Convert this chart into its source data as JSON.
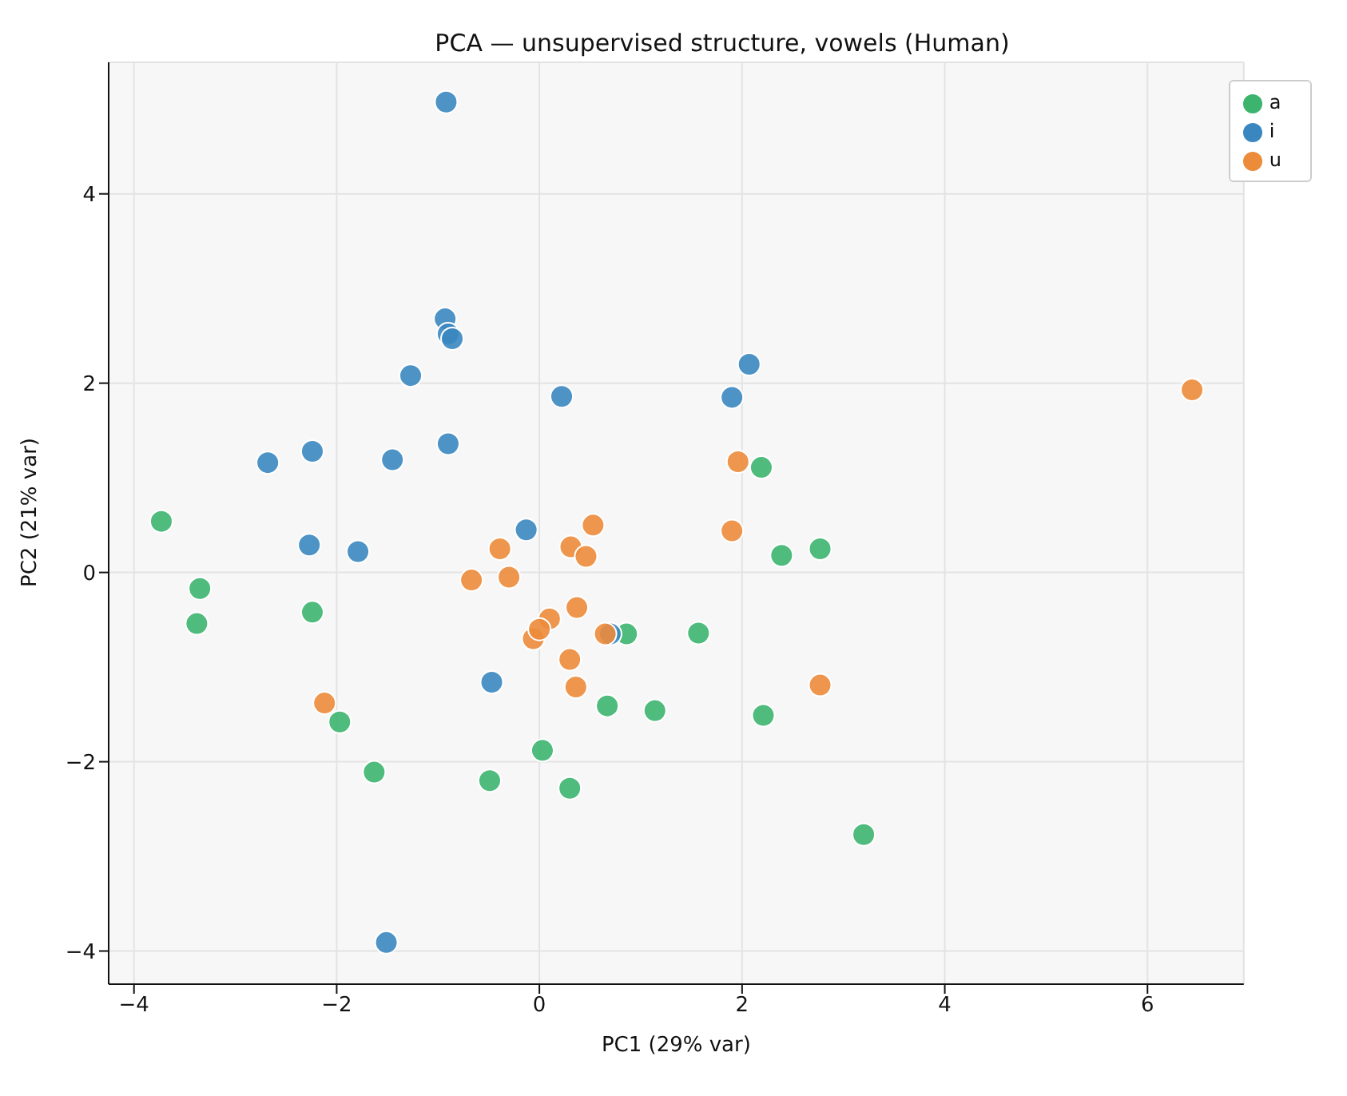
{
  "chart_data": {
    "type": "scatter",
    "title": "PCA — unsupervised structure, vowels (Human)",
    "xlabel": "PC1 (29% var)",
    "ylabel": "PC2 (21% var)",
    "xlim": [
      -4.25,
      6.95
    ],
    "ylim": [
      -4.35,
      5.39
    ],
    "xticks": [
      {
        "value": -4,
        "label": "−4"
      },
      {
        "value": -2,
        "label": "−2"
      },
      0,
      2,
      4,
      6
    ],
    "yticks": [
      {
        "value": -4,
        "label": "−4"
      },
      {
        "value": -2,
        "label": "−2"
      },
      0,
      2,
      4
    ],
    "grid": true,
    "legend": "top right",
    "marker": "circle",
    "series": [
      {
        "name": "a",
        "color": "#3cb46e",
        "x": [
          -3.73,
          -3.35,
          -3.38,
          -2.24,
          -1.97,
          -1.63,
          -0.49,
          0.03,
          0.3,
          0.67,
          0.86,
          1.14,
          1.57,
          2.19,
          2.21,
          2.39,
          2.77,
          3.2
        ],
        "values": [
          0.54,
          -0.17,
          -0.54,
          -0.42,
          -1.58,
          -2.11,
          -2.2,
          -1.88,
          -2.28,
          -1.41,
          -0.65,
          -1.46,
          -0.64,
          1.11,
          -1.51,
          0.18,
          0.25,
          -2.77
        ]
      },
      {
        "name": "i",
        "color": "#3a87c0",
        "x": [
          -0.92,
          -0.93,
          -0.9,
          -0.86,
          -1.27,
          0.22,
          2.07,
          1.9,
          -2.68,
          -2.24,
          -1.45,
          -0.9,
          -2.27,
          -1.79,
          -0.13,
          -0.47,
          0.7,
          -1.51
        ],
        "values": [
          4.97,
          2.68,
          2.52,
          2.47,
          2.08,
          1.86,
          2.2,
          1.85,
          1.16,
          1.28,
          1.19,
          1.36,
          0.29,
          0.22,
          0.45,
          -1.16,
          -0.65,
          -3.91
        ]
      },
      {
        "name": "u",
        "color": "#ec8b3a",
        "x": [
          6.44,
          1.96,
          1.9,
          0.53,
          -0.39,
          0.31,
          0.46,
          -0.67,
          -0.3,
          0.37,
          0.1,
          -0.06,
          0.0,
          0.65,
          0.3,
          0.36,
          2.77,
          -2.12
        ],
        "values": [
          1.93,
          1.17,
          0.44,
          0.5,
          0.25,
          0.27,
          0.17,
          -0.08,
          -0.05,
          -0.37,
          -0.49,
          -0.7,
          -0.6,
          -0.65,
          -0.92,
          -1.21,
          -1.19,
          -1.38
        ]
      }
    ]
  }
}
